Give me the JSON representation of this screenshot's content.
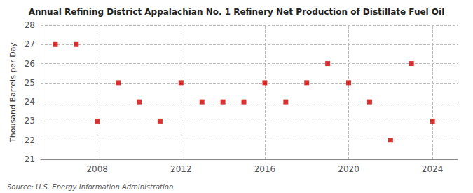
{
  "chart_data": {
    "type": "scatter",
    "title": "Annual Refining District Appalachian No. 1 Refinery Net Production of Distillate Fuel Oil",
    "ylabel": "Thousand Barrels per Day",
    "annotations": [
      "Source: U.S. Energy Information Administration"
    ],
    "x": [
      2006,
      2007,
      2008,
      2009,
      2010,
      2011,
      2012,
      2013,
      2014,
      2015,
      2016,
      2017,
      2018,
      2019,
      2020,
      2021,
      2022,
      2023,
      2024
    ],
    "values": [
      27.0,
      27.0,
      23.0,
      25.0,
      24.0,
      23.0,
      25.0,
      24.0,
      24.0,
      24.0,
      25.0,
      24.0,
      25.0,
      26.0,
      25.0,
      24.0,
      22.0,
      26.0,
      23.0
    ],
    "color": "#cc0000",
    "marker": "square",
    "xlim": [
      2005.3,
      2025.2
    ],
    "xticks": [
      2008,
      2012,
      2016,
      2020,
      2024
    ],
    "ylim": [
      21,
      28
    ],
    "yticks": [
      21,
      22,
      23,
      24,
      25,
      26,
      27,
      28
    ],
    "grid": true
  }
}
